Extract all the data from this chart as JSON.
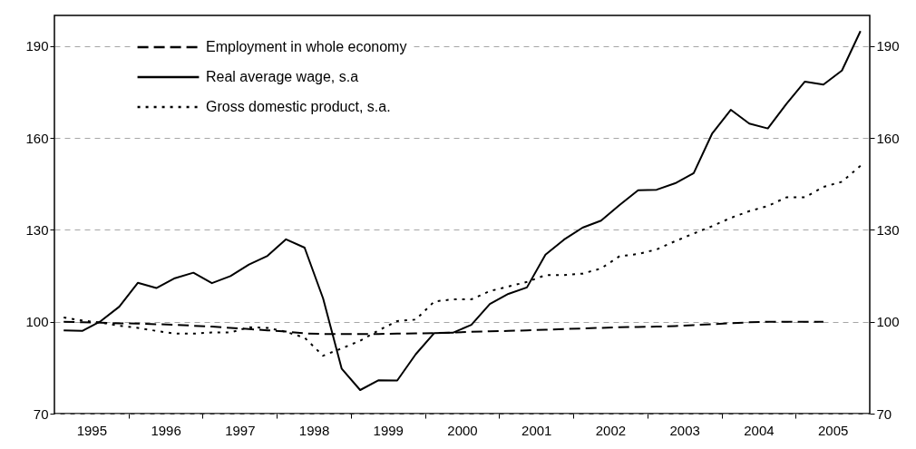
{
  "chart_data": {
    "type": "line",
    "x": [
      1995.125,
      1995.375,
      1995.625,
      1995.875,
      1996.125,
      1996.375,
      1996.625,
      1996.875,
      1997.125,
      1997.375,
      1997.625,
      1997.875,
      1998.125,
      1998.375,
      1998.625,
      1998.875,
      1999.125,
      1999.375,
      1999.625,
      1999.875,
      2000.125,
      2000.375,
      2000.625,
      2000.875,
      2001.125,
      2001.375,
      2001.625,
      2001.875,
      2002.125,
      2002.375,
      2002.625,
      2002.875,
      2003.125,
      2003.375,
      2003.625,
      2003.875,
      2004.125,
      2004.375,
      2004.625,
      2004.875,
      2005.125,
      2005.375,
      2005.625,
      2005.875
    ],
    "series": [
      {
        "name": "Employment in whole economy",
        "color": "#000000",
        "line_style": "dashed",
        "values": [
          100.0,
          99.8,
          99.7,
          99.5,
          99.4,
          99.2,
          99.0,
          98.7,
          98.4,
          98.0,
          97.6,
          97.2,
          96.8,
          96.2,
          96.0,
          96.0,
          96.0,
          96.0,
          96.1,
          96.2,
          96.3,
          96.5,
          96.7,
          96.9,
          97.0,
          97.2,
          97.4,
          97.6,
          97.8,
          98.0,
          98.2,
          98.3,
          98.4,
          98.6,
          98.9,
          99.2,
          99.5,
          99.8,
          100.0,
          100.0,
          100.0,
          100.0,
          null,
          null
        ]
      },
      {
        "name": "Real average wage, s.a",
        "color": "#000000",
        "line_style": "solid",
        "values": [
          97.2,
          97.0,
          100.2,
          104.9,
          112.7,
          111.0,
          114.2,
          116.0,
          112.6,
          114.9,
          118.7,
          121.5,
          126.9,
          124.2,
          107.6,
          84.7,
          77.7,
          80.9,
          80.8,
          89.4,
          96.3,
          96.4,
          99.0,
          105.8,
          109.1,
          111.2,
          121.9,
          126.8,
          130.7,
          133.0,
          138.1,
          142.9,
          143.1,
          145.2,
          148.5,
          161.5,
          169.2,
          164.7,
          163.1,
          171.1,
          178.4,
          177.4,
          182.0,
          194.9
        ]
      },
      {
        "name": "Gross domestic product, s.a.",
        "color": "#000000",
        "line_style": "dotted",
        "values": [
          101.4,
          100.4,
          99.7,
          98.7,
          98.0,
          97.0,
          96.1,
          96.1,
          96.5,
          96.5,
          98.2,
          98.0,
          96.7,
          94.8,
          88.9,
          91.3,
          93.8,
          97.2,
          100.2,
          100.7,
          106.6,
          107.3,
          107.3,
          110.0,
          111.5,
          113.0,
          115.2,
          115.2,
          115.7,
          117.4,
          121.4,
          122.1,
          123.6,
          126.3,
          128.8,
          131.2,
          133.9,
          136.1,
          137.8,
          140.6,
          140.6,
          144.0,
          145.7,
          150.9
        ]
      }
    ],
    "xlim": [
      1995,
      2006
    ],
    "xticks": [
      {
        "value": 1995.5,
        "label": "1995"
      },
      {
        "value": 1996,
        "label": null
      },
      {
        "value": 1996.5,
        "label": "1996"
      },
      {
        "value": 1997,
        "label": null
      },
      {
        "value": 1997.5,
        "label": "1997"
      },
      {
        "value": 1998,
        "label": null
      },
      {
        "value": 1998.5,
        "label": "1998"
      },
      {
        "value": 1999,
        "label": null
      },
      {
        "value": 1999.5,
        "label": "1999"
      },
      {
        "value": 2000,
        "label": null
      },
      {
        "value": 2000.5,
        "label": "2000"
      },
      {
        "value": 2001,
        "label": null
      },
      {
        "value": 2001.5,
        "label": "2001"
      },
      {
        "value": 2002,
        "label": null
      },
      {
        "value": 2002.5,
        "label": "2002"
      },
      {
        "value": 2003,
        "label": null
      },
      {
        "value": 2003.5,
        "label": "2003"
      },
      {
        "value": 2004,
        "label": null
      },
      {
        "value": 2004.5,
        "label": "2004"
      },
      {
        "value": 2005,
        "label": null
      },
      {
        "value": 2005.5,
        "label": "2005"
      }
    ],
    "ylim": [
      70,
      200
    ],
    "yticks": [
      70,
      100,
      130,
      160,
      190
    ],
    "y2lim": [
      70,
      200
    ],
    "y2ticks": [
      70,
      100,
      130,
      160,
      190
    ],
    "grid": "y",
    "legend": "top left"
  }
}
